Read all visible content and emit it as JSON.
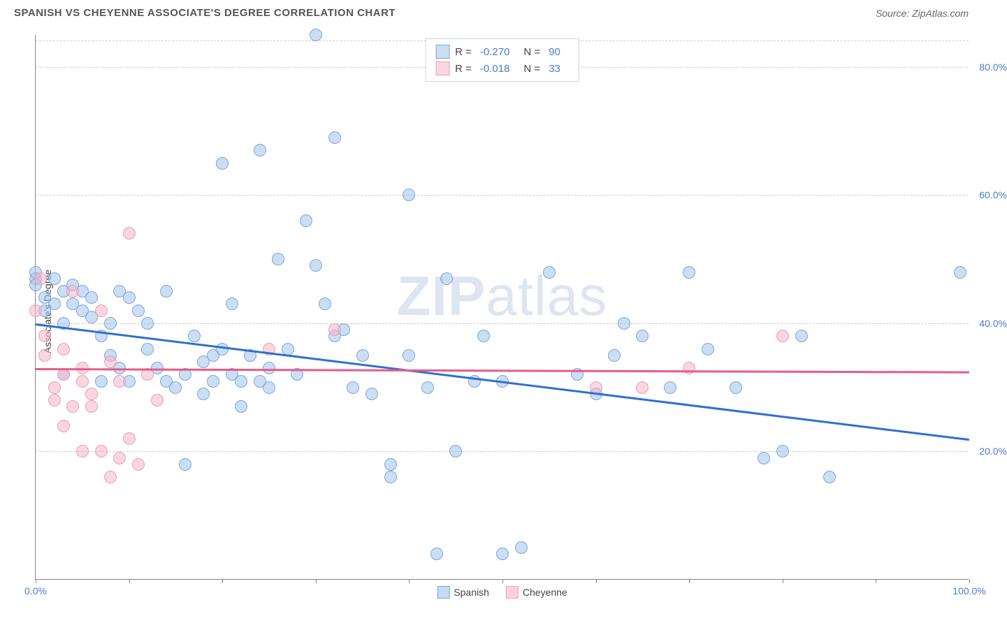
{
  "header": {
    "title": "SPANISH VS CHEYENNE ASSOCIATE'S DEGREE CORRELATION CHART",
    "source": "Source: ZipAtlas.com"
  },
  "chart": {
    "type": "scatter",
    "y_axis_label": "Associate's Degree",
    "xlim": [
      0,
      100
    ],
    "ylim": [
      0,
      85
    ],
    "x_ticks": [
      0,
      10,
      20,
      30,
      40,
      50,
      60,
      70,
      80,
      90,
      100
    ],
    "y_gridlines": [
      20,
      40,
      60,
      80
    ],
    "x_tick_labels": [
      {
        "pos": 0,
        "label": "0.0%"
      },
      {
        "pos": 100,
        "label": "100.0%"
      }
    ],
    "y_tick_labels": [
      {
        "pos": 20,
        "label": "20.0%"
      },
      {
        "pos": 40,
        "label": "40.0%"
      },
      {
        "pos": 60,
        "label": "60.0%"
      },
      {
        "pos": 80,
        "label": "80.0%"
      }
    ],
    "background_color": "#ffffff",
    "grid_color": "#cccccc",
    "axis_color": "#888888",
    "point_radius": 9,
    "watermark": "ZIPatlas",
    "series": [
      {
        "name": "Spanish",
        "fill_color": "rgba(160, 195, 235, 0.55)",
        "stroke_color": "#7aa8d8",
        "line_color": "#2f6fd0",
        "trend": {
          "x1": 0,
          "y1": 40,
          "x2": 100,
          "y2": 22
        },
        "r_value": "-0.270",
        "n_value": "90",
        "points": [
          [
            0,
            47
          ],
          [
            0,
            46
          ],
          [
            0,
            48
          ],
          [
            1,
            44
          ],
          [
            1,
            42
          ],
          [
            2,
            43
          ],
          [
            2,
            47
          ],
          [
            3,
            45
          ],
          [
            3,
            32
          ],
          [
            3,
            40
          ],
          [
            4,
            43
          ],
          [
            4,
            46
          ],
          [
            5,
            42
          ],
          [
            5,
            45
          ],
          [
            6,
            44
          ],
          [
            6,
            41
          ],
          [
            7,
            38
          ],
          [
            7,
            31
          ],
          [
            8,
            40
          ],
          [
            8,
            35
          ],
          [
            9,
            33
          ],
          [
            9,
            45
          ],
          [
            10,
            44
          ],
          [
            10,
            31
          ],
          [
            11,
            42
          ],
          [
            12,
            40
          ],
          [
            12,
            36
          ],
          [
            13,
            33
          ],
          [
            14,
            45
          ],
          [
            14,
            31
          ],
          [
            15,
            30
          ],
          [
            16,
            32
          ],
          [
            16,
            18
          ],
          [
            17,
            38
          ],
          [
            18,
            34
          ],
          [
            18,
            29
          ],
          [
            19,
            35
          ],
          [
            19,
            31
          ],
          [
            20,
            65
          ],
          [
            20,
            36
          ],
          [
            21,
            43
          ],
          [
            21,
            32
          ],
          [
            22,
            31
          ],
          [
            22,
            27
          ],
          [
            23,
            35
          ],
          [
            24,
            67
          ],
          [
            24,
            31
          ],
          [
            25,
            30
          ],
          [
            25,
            33
          ],
          [
            26,
            50
          ],
          [
            27,
            36
          ],
          [
            28,
            32
          ],
          [
            29,
            56
          ],
          [
            30,
            85
          ],
          [
            30,
            49
          ],
          [
            31,
            43
          ],
          [
            32,
            69
          ],
          [
            32,
            38
          ],
          [
            33,
            39
          ],
          [
            34,
            30
          ],
          [
            35,
            35
          ],
          [
            36,
            29
          ],
          [
            38,
            18
          ],
          [
            38,
            16
          ],
          [
            40,
            60
          ],
          [
            40,
            35
          ],
          [
            42,
            30
          ],
          [
            43,
            4
          ],
          [
            44,
            47
          ],
          [
            45,
            20
          ],
          [
            47,
            31
          ],
          [
            48,
            38
          ],
          [
            50,
            4
          ],
          [
            50,
            31
          ],
          [
            52,
            5
          ],
          [
            55,
            48
          ],
          [
            58,
            32
          ],
          [
            60,
            29
          ],
          [
            62,
            35
          ],
          [
            63,
            40
          ],
          [
            65,
            38
          ],
          [
            68,
            30
          ],
          [
            70,
            48
          ],
          [
            72,
            36
          ],
          [
            75,
            30
          ],
          [
            78,
            19
          ],
          [
            80,
            20
          ],
          [
            82,
            38
          ],
          [
            85,
            16
          ],
          [
            99,
            48
          ]
        ]
      },
      {
        "name": "Cheyenne",
        "fill_color": "rgba(245, 180, 200, 0.55)",
        "stroke_color": "#e8a0b8",
        "line_color": "#e85a8a",
        "trend": {
          "x1": 0,
          "y1": 33,
          "x2": 100,
          "y2": 32.5
        },
        "r_value": "-0.018",
        "n_value": "33",
        "points": [
          [
            0,
            42
          ],
          [
            0.5,
            47
          ],
          [
            1,
            38
          ],
          [
            1,
            35
          ],
          [
            2,
            30
          ],
          [
            2,
            28
          ],
          [
            3,
            36
          ],
          [
            3,
            32
          ],
          [
            3,
            24
          ],
          [
            4,
            45
          ],
          [
            4,
            27
          ],
          [
            5,
            33
          ],
          [
            5,
            31
          ],
          [
            5,
            20
          ],
          [
            6,
            29
          ],
          [
            6,
            27
          ],
          [
            7,
            42
          ],
          [
            7,
            20
          ],
          [
            8,
            16
          ],
          [
            8,
            34
          ],
          [
            9,
            31
          ],
          [
            9,
            19
          ],
          [
            10,
            54
          ],
          [
            10,
            22
          ],
          [
            11,
            18
          ],
          [
            12,
            32
          ],
          [
            13,
            28
          ],
          [
            25,
            36
          ],
          [
            32,
            39
          ],
          [
            60,
            30
          ],
          [
            65,
            30
          ],
          [
            70,
            33
          ],
          [
            80,
            38
          ]
        ]
      }
    ],
    "bottom_legend": [
      {
        "label": "Spanish",
        "fill": "rgba(160, 195, 235, 0.6)",
        "stroke": "#7aa8d8"
      },
      {
        "label": "Cheyenne",
        "fill": "rgba(245, 180, 200, 0.6)",
        "stroke": "#e8a0b8"
      }
    ]
  },
  "labels": {
    "r_prefix": "R =",
    "n_prefix": "N ="
  }
}
